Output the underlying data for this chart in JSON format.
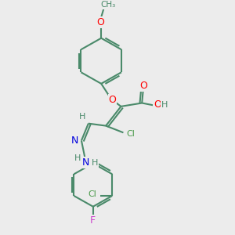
{
  "background_color": "#ececec",
  "bond_color": "#4a8a6a",
  "bond_width": 1.5,
  "atom_colors": {
    "O": "#ff0000",
    "N": "#0000dd",
    "Cl": "#4a9a4a",
    "F": "#cc44cc",
    "H": "#4a8a6a",
    "C": "#4a8a6a"
  },
  "font_size_atom": 8,
  "fig_width": 3.0,
  "fig_height": 3.0,
  "dpi": 100
}
